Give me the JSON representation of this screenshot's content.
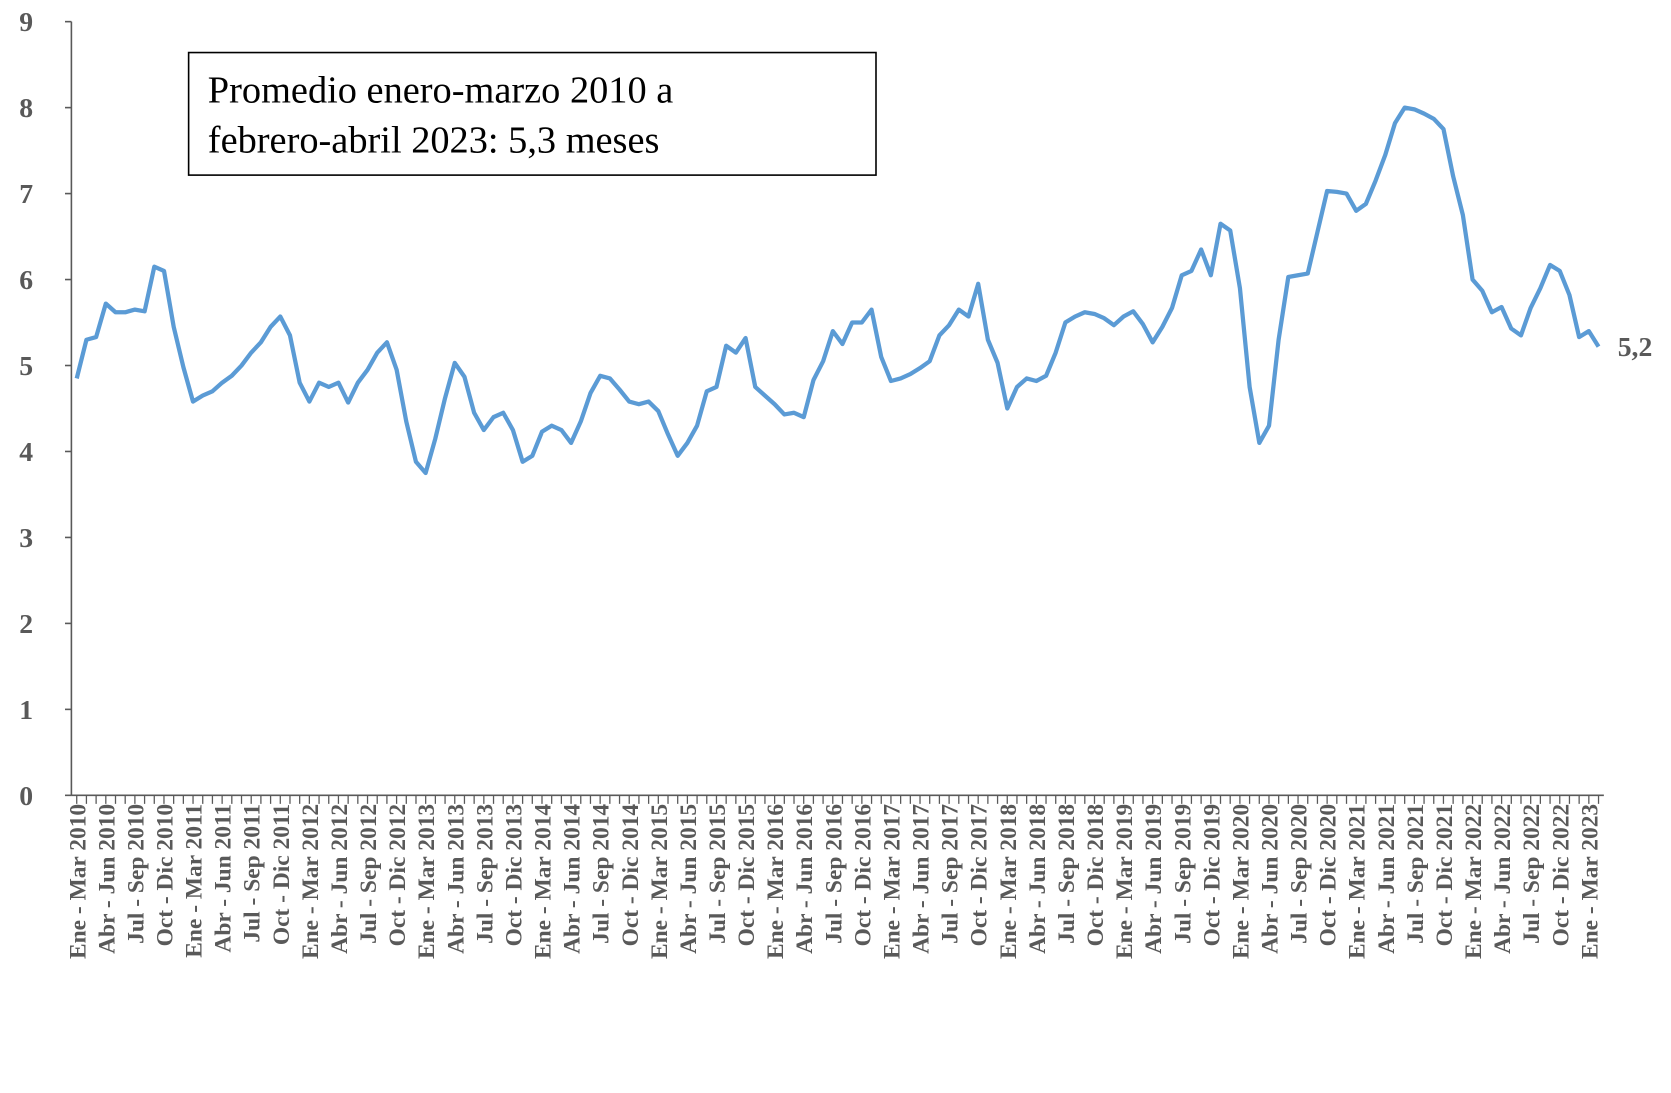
{
  "chart_data": {
    "type": "line",
    "annotation": [
      "Promedio enero-marzo 2010 a",
      "febrero-abril 2023: 5,3 meses"
    ],
    "categories": [
      "Ene - Mar 2010",
      null,
      null,
      "Abr - Jun 2010",
      null,
      null,
      "Jul - Sep 2010",
      null,
      null,
      "Oct - Dic 2010",
      null,
      null,
      "Ene - Mar 2011",
      null,
      null,
      "Abr - Jun 2011",
      null,
      null,
      "Jul - Sep 2011",
      null,
      null,
      "Oct - Dic 2011",
      null,
      null,
      "Ene - Mar 2012",
      null,
      null,
      "Abr - Jun 2012",
      null,
      null,
      "Jul - Sep 2012",
      null,
      null,
      "Oct - Dic 2012",
      null,
      null,
      "Ene - Mar 2013",
      null,
      null,
      "Abr - Jun 2013",
      null,
      null,
      "Jul - Sep 2013",
      null,
      null,
      "Oct - Dic 2013",
      null,
      null,
      "Ene - Mar 2014",
      null,
      null,
      "Abr - Jun 2014",
      null,
      null,
      "Jul - Sep 2014",
      null,
      null,
      "Oct - Dic 2014",
      null,
      null,
      "Ene - Mar 2015",
      null,
      null,
      "Abr - Jun 2015",
      null,
      null,
      "Jul - Sep 2015",
      null,
      null,
      "Oct - Dic 2015",
      null,
      null,
      "Ene - Mar 2016",
      null,
      null,
      "Abr - Jun 2016",
      null,
      null,
      "Jul - Sep 2016",
      null,
      null,
      "Oct - Dic 2016",
      null,
      null,
      "Ene - Mar 2017",
      null,
      null,
      "Abr - Jun 2017",
      null,
      null,
      "Jul - Sep 2017",
      null,
      null,
      "Oct - Dic 2017",
      null,
      null,
      "Ene - Mar 2018",
      null,
      null,
      "Abr - Jun 2018",
      null,
      null,
      "Jul - Sep 2018",
      null,
      null,
      "Oct - Dic 2018",
      null,
      null,
      "Ene - Mar 2019",
      null,
      null,
      "Abr - Jun 2019",
      null,
      null,
      "Jul - Sep 2019",
      null,
      null,
      "Oct - Dic 2019",
      null,
      null,
      "Ene - Mar 2020",
      null,
      null,
      "Abr - Jun 2020",
      null,
      null,
      "Jul - Sep 2020",
      null,
      null,
      "Oct - Dic 2020",
      null,
      null,
      "Ene - Mar 2021",
      null,
      null,
      "Abr - Jun 2021",
      null,
      null,
      "Jul - Sep 2021",
      null,
      null,
      "Oct - Dic 2021",
      null,
      null,
      "Ene - Mar 2022",
      null,
      null,
      "Abr - Jun 2022",
      null,
      null,
      "Jul - Sep 2022",
      null,
      null,
      "Oct - Dic 2022",
      null,
      null,
      "Ene - Mar 2023",
      null
    ],
    "values": [
      4.85,
      5.3,
      5.33,
      5.72,
      5.62,
      5.62,
      5.65,
      5.63,
      6.15,
      6.1,
      5.45,
      4.98,
      4.58,
      4.65,
      4.7,
      4.8,
      4.88,
      5.0,
      5.15,
      5.27,
      5.45,
      5.57,
      5.35,
      4.8,
      4.58,
      4.8,
      4.75,
      4.8,
      4.57,
      4.8,
      4.95,
      5.15,
      5.27,
      4.95,
      4.35,
      3.88,
      3.75,
      4.15,
      4.62,
      5.03,
      4.87,
      4.45,
      4.25,
      4.4,
      4.45,
      4.25,
      3.88,
      3.95,
      4.23,
      4.3,
      4.25,
      4.1,
      4.35,
      4.68,
      4.88,
      4.85,
      4.72,
      4.58,
      4.55,
      4.58,
      4.47,
      4.2,
      3.95,
      4.1,
      4.3,
      4.7,
      4.75,
      5.23,
      5.15,
      5.32,
      4.75,
      4.65,
      4.55,
      4.43,
      4.45,
      4.4,
      4.83,
      5.05,
      5.4,
      5.25,
      5.5,
      5.5,
      5.65,
      5.1,
      4.82,
      4.85,
      4.9,
      4.97,
      5.05,
      5.35,
      5.47,
      5.65,
      5.57,
      5.95,
      5.3,
      5.03,
      4.5,
      4.75,
      4.85,
      4.82,
      4.88,
      5.15,
      5.5,
      5.57,
      5.62,
      5.6,
      5.55,
      5.47,
      5.57,
      5.63,
      5.48,
      5.27,
      5.45,
      5.67,
      6.05,
      6.1,
      6.35,
      6.05,
      6.65,
      6.57,
      5.9,
      4.75,
      4.1,
      4.3,
      5.3,
      6.03,
      6.05,
      6.07,
      6.55,
      7.03,
      7.02,
      7.0,
      6.8,
      6.88,
      7.15,
      7.45,
      7.82,
      8.0,
      7.98,
      7.93,
      7.87,
      7.75,
      7.2,
      6.75,
      6.0,
      5.87,
      5.62,
      5.68,
      5.43,
      5.35,
      5.67,
      5.9,
      6.17,
      6.1,
      5.82,
      5.33,
      5.4,
      5.22
    ],
    "value_labels": [
      null,
      null,
      null,
      null,
      null,
      null,
      null,
      null,
      null,
      null,
      null,
      null,
      null,
      null,
      null,
      null,
      null,
      null,
      null,
      null,
      null,
      null,
      null,
      null,
      null,
      null,
      null,
      null,
      null,
      null,
      null,
      null,
      null,
      null,
      null,
      null,
      null,
      null,
      null,
      null,
      null,
      null,
      null,
      null,
      null,
      null,
      null,
      null,
      null,
      null,
      null,
      null,
      null,
      null,
      null,
      null,
      null,
      null,
      null,
      null,
      null,
      null,
      null,
      null,
      null,
      null,
      null,
      null,
      null,
      null,
      null,
      null,
      null,
      null,
      null,
      null,
      null,
      null,
      null,
      null,
      null,
      null,
      null,
      null,
      null,
      null,
      null,
      null,
      null,
      null,
      null,
      null,
      null,
      null,
      null,
      null,
      null,
      null,
      null,
      null,
      null,
      null,
      null,
      null,
      null,
      null,
      null,
      null,
      null,
      null,
      null,
      null,
      null,
      null,
      null,
      null,
      null,
      null,
      null,
      null,
      null,
      null,
      null,
      null,
      null,
      null,
      null,
      null,
      null,
      null,
      null,
      null,
      null,
      null,
      null,
      null,
      null,
      null,
      null,
      null,
      null,
      null,
      null,
      null,
      null,
      null,
      null,
      null,
      null,
      null,
      null,
      null,
      null,
      null,
      null,
      null,
      null,
      "5,2"
    ],
    "color": "#5b9bd5",
    "ylim": [
      0,
      9
    ],
    "yticks": [
      0,
      1,
      2,
      3,
      4,
      5,
      6,
      7,
      8,
      9
    ]
  }
}
